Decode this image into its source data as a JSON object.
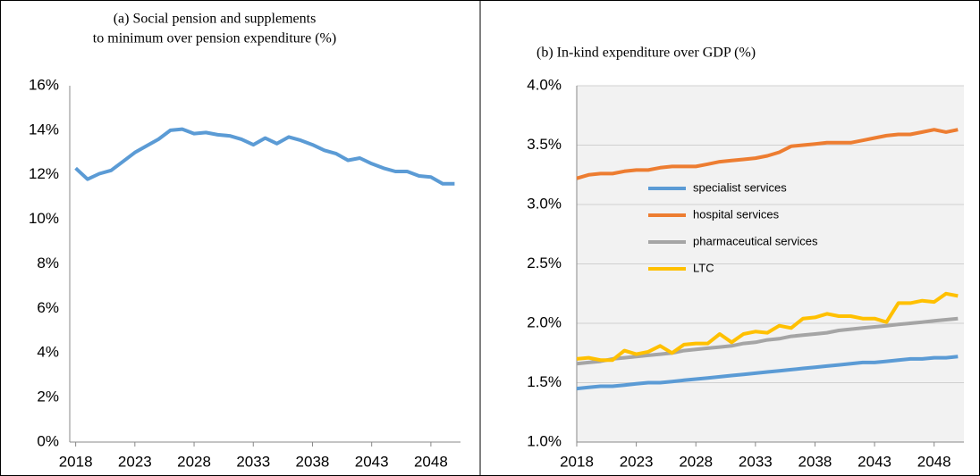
{
  "chart_data": [
    {
      "type": "line",
      "title": [
        "(a) Social pension and supplements",
        "to minimum over pension expenditure (%)"
      ],
      "x": [
        2018,
        2019,
        2020,
        2021,
        2022,
        2023,
        2024,
        2025,
        2026,
        2027,
        2028,
        2029,
        2030,
        2031,
        2032,
        2033,
        2034,
        2035,
        2036,
        2037,
        2038,
        2039,
        2040,
        2041,
        2042,
        2043,
        2044,
        2045,
        2046,
        2047,
        2048,
        2049,
        2050
      ],
      "series": [
        {
          "color": "#5b9bd5",
          "values": [
            12.3,
            11.8,
            12.05,
            12.2,
            12.6,
            13.0,
            13.3,
            13.6,
            14.0,
            14.05,
            13.85,
            13.9,
            13.8,
            13.75,
            13.6,
            13.35,
            13.65,
            13.4,
            13.7,
            13.55,
            13.35,
            13.1,
            12.95,
            12.65,
            12.75,
            12.5,
            12.3,
            12.15,
            12.15,
            11.95,
            11.9,
            11.6,
            11.6
          ]
        }
      ],
      "xlim": [
        2017.5,
        2050.5
      ],
      "xticks": [
        2018,
        2023,
        2028,
        2033,
        2038,
        2043,
        2048
      ],
      "ylim": [
        0,
        16
      ],
      "yticks": [
        {
          "value": 0,
          "label": "0%"
        },
        {
          "value": 2,
          "label": "2%"
        },
        {
          "value": 4,
          "label": "4%"
        },
        {
          "value": 6,
          "label": "6%"
        },
        {
          "value": 8,
          "label": "8%"
        },
        {
          "value": 10,
          "label": "10%"
        },
        {
          "value": 12,
          "label": "12%"
        },
        {
          "value": 14,
          "label": "14%"
        },
        {
          "value": 16,
          "label": "16%"
        }
      ],
      "grid": false,
      "background": "#ffffff"
    },
    {
      "type": "line",
      "title": [
        "(b)  In-kind expenditure over GDP (%)"
      ],
      "x": [
        2018,
        2019,
        2020,
        2021,
        2022,
        2023,
        2024,
        2025,
        2026,
        2027,
        2028,
        2029,
        2030,
        2031,
        2032,
        2033,
        2034,
        2035,
        2036,
        2037,
        2038,
        2039,
        2040,
        2041,
        2042,
        2043,
        2044,
        2045,
        2046,
        2047,
        2048,
        2049,
        2050
      ],
      "series": [
        {
          "name": "specialist services",
          "color": "#5b9bd5",
          "values": [
            1.45,
            1.46,
            1.47,
            1.47,
            1.48,
            1.49,
            1.5,
            1.5,
            1.51,
            1.52,
            1.53,
            1.54,
            1.55,
            1.56,
            1.57,
            1.58,
            1.59,
            1.6,
            1.61,
            1.62,
            1.63,
            1.64,
            1.65,
            1.66,
            1.67,
            1.67,
            1.68,
            1.69,
            1.7,
            1.7,
            1.71,
            1.71,
            1.72
          ]
        },
        {
          "name": "hospital services",
          "color": "#ed7d31",
          "values": [
            3.22,
            3.25,
            3.26,
            3.26,
            3.28,
            3.29,
            3.29,
            3.31,
            3.32,
            3.32,
            3.32,
            3.34,
            3.36,
            3.37,
            3.38,
            3.39,
            3.41,
            3.44,
            3.49,
            3.5,
            3.51,
            3.52,
            3.52,
            3.52,
            3.54,
            3.56,
            3.58,
            3.59,
            3.59,
            3.61,
            3.63,
            3.61,
            3.63
          ]
        },
        {
          "name": "pharmaceutical services",
          "color": "#a5a5a5",
          "values": [
            1.66,
            1.67,
            1.68,
            1.7,
            1.71,
            1.72,
            1.73,
            1.74,
            1.75,
            1.77,
            1.78,
            1.79,
            1.8,
            1.81,
            1.83,
            1.84,
            1.86,
            1.87,
            1.89,
            1.9,
            1.91,
            1.92,
            1.94,
            1.95,
            1.96,
            1.97,
            1.98,
            1.99,
            2.0,
            2.01,
            2.02,
            2.03,
            2.04
          ]
        },
        {
          "name": "LTC",
          "color": "#ffc000",
          "values": [
            1.7,
            1.71,
            1.69,
            1.69,
            1.77,
            1.74,
            1.76,
            1.81,
            1.75,
            1.82,
            1.83,
            1.83,
            1.91,
            1.84,
            1.91,
            1.93,
            1.92,
            1.98,
            1.96,
            2.04,
            2.05,
            2.08,
            2.06,
            2.06,
            2.04,
            2.04,
            2.01,
            2.17,
            2.17,
            2.19,
            2.18,
            2.25,
            2.23
          ]
        }
      ],
      "xlim": [
        2018,
        2050.5
      ],
      "xticks": [
        2018,
        2023,
        2028,
        2033,
        2038,
        2043,
        2048
      ],
      "ylim": [
        1.0,
        4.0
      ],
      "yticks": [
        {
          "value": 1.0,
          "label": "1.0%"
        },
        {
          "value": 1.5,
          "label": "1.5%"
        },
        {
          "value": 2.0,
          "label": "2.0%"
        },
        {
          "value": 2.5,
          "label": "2.5%"
        },
        {
          "value": 3.0,
          "label": "3.0%"
        },
        {
          "value": 3.5,
          "label": "3.5%"
        },
        {
          "value": 4.0,
          "label": "4.0%"
        }
      ],
      "grid": true,
      "background": "#f2f2f2",
      "legend": "center-left"
    }
  ]
}
